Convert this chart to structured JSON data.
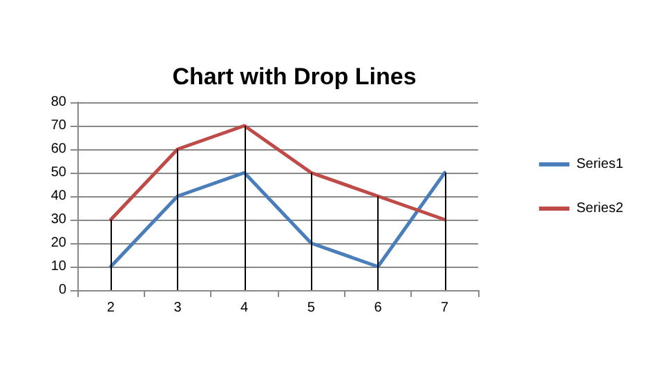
{
  "chart_data": {
    "type": "line",
    "title": "Chart with Drop Lines",
    "categories": [
      "2",
      "3",
      "4",
      "5",
      "6",
      "7"
    ],
    "series": [
      {
        "name": "Series1",
        "color": "#4a7ebb",
        "values": [
          10,
          40,
          50,
          20,
          10,
          50
        ]
      },
      {
        "name": "Series2",
        "color": "#be4b48",
        "values": [
          30,
          60,
          70,
          50,
          40,
          30
        ]
      }
    ],
    "ylim": [
      0,
      80
    ],
    "yticks": [
      0,
      10,
      20,
      30,
      40,
      50,
      60,
      70,
      80
    ],
    "grid": "y",
    "legend": "right",
    "marker": "none",
    "line_style": "solid",
    "ref_lines": [
      {
        "axis": "x",
        "value": "2",
        "color": "#000000"
      },
      {
        "axis": "x",
        "value": "3",
        "color": "#000000"
      },
      {
        "axis": "x",
        "value": "4",
        "color": "#000000"
      },
      {
        "axis": "x",
        "value": "5",
        "color": "#000000"
      },
      {
        "axis": "x",
        "value": "6",
        "color": "#000000"
      },
      {
        "axis": "x",
        "value": "7",
        "color": "#000000"
      }
    ]
  }
}
